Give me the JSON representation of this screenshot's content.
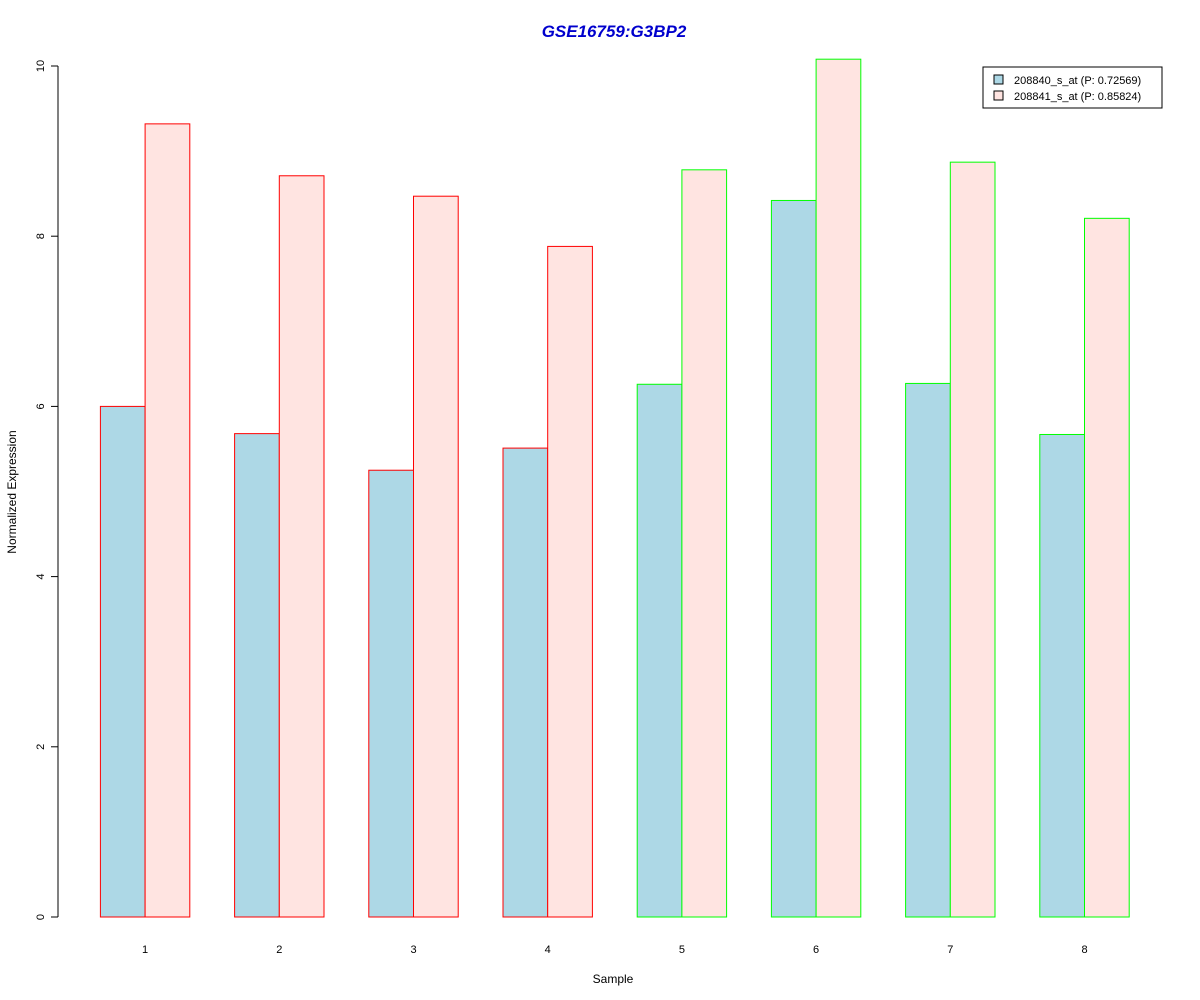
{
  "chart_data": {
    "type": "bar",
    "title": "GSE16759:G3BP2",
    "xlabel": "Sample",
    "ylabel": "Normalized Expression",
    "ylim": [
      0,
      10
    ],
    "yticks": [
      "0",
      "2",
      "4",
      "6",
      "8",
      "10"
    ],
    "categories": [
      "1",
      "2",
      "3",
      "4",
      "5",
      "6",
      "7",
      "8"
    ],
    "series": [
      {
        "name": "208840_s_at (P: 0.72569)",
        "fill": "#add8e6",
        "values": [
          6.0,
          5.68,
          5.25,
          5.51,
          6.26,
          8.42,
          6.27,
          5.67
        ]
      },
      {
        "name": "208841_s_at (P: 0.85824)",
        "fill": "#ffe4e1",
        "values": [
          9.32,
          8.71,
          8.47,
          7.88,
          8.78,
          10.08,
          8.87,
          8.21
        ]
      }
    ],
    "group_border_colors": [
      "#ff0000",
      "#ff0000",
      "#ff0000",
      "#ff0000",
      "#00ff00",
      "#00ff00",
      "#00ff00",
      "#00ff00"
    ],
    "title_color": "#0000cd",
    "legend_position": "top-right",
    "grid": false
  }
}
